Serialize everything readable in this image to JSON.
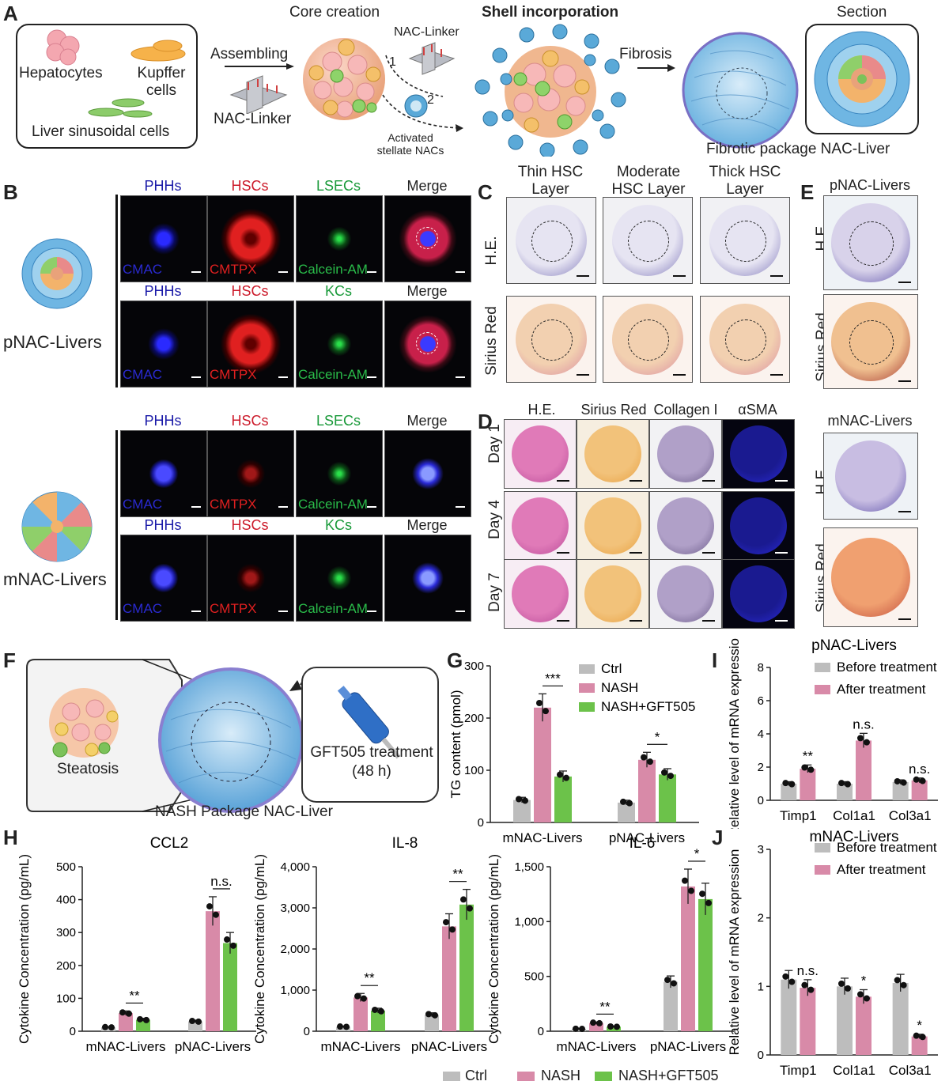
{
  "panel_labels": {
    "a": "A",
    "b": "B",
    "c": "C",
    "d": "D",
    "e": "E",
    "f": "F",
    "g": "G",
    "h": "H",
    "i": "I",
    "j": "J"
  },
  "panelA": {
    "cell_types": {
      "hepatocytes": "Hepatocytes",
      "kupffer": "Kupffer cells",
      "lsec": "Liver sinusoidal cells"
    },
    "assembling": "Assembling",
    "nac_linker": "NAC-Linker",
    "core_creation": "Core creation",
    "shell_incorporation": "Shell incorporation",
    "linker_top": "NAC-Linker",
    "step1": "1",
    "step2": "2",
    "activated": "Activated stellate NACs",
    "fibrosis": "Fibrosis",
    "section": "Section",
    "fibrotic_package": "Fibrotic package NAC-Liver"
  },
  "panelB": {
    "group1": "pNAC-Livers",
    "group2": "mNAC-Livers",
    "rows": [
      {
        "headers": [
          "PHHs",
          "HSCs",
          "LSECs",
          "Merge"
        ],
        "dyes": [
          "CMAC",
          "CMTPX",
          "Calcein-AM",
          ""
        ]
      },
      {
        "headers": [
          "PHHs",
          "HSCs",
          "KCs",
          "Merge"
        ],
        "dyes": [
          "CMAC",
          "CMTPX",
          "Calcein-AM",
          ""
        ]
      },
      {
        "headers": [
          "PHHs",
          "HSCs",
          "LSECs",
          "Merge"
        ],
        "dyes": [
          "CMAC",
          "CMTPX",
          "Calcein-AM",
          ""
        ]
      },
      {
        "headers": [
          "PHHs",
          "HSCs",
          "KCs",
          "Merge"
        ],
        "dyes": [
          "CMAC",
          "CMTPX",
          "Calcein-AM",
          ""
        ]
      }
    ],
    "header_colors": [
      "#1a1aa8",
      "#cc1a2a",
      "#1a9a3a",
      "#222222"
    ]
  },
  "panelC": {
    "cols": [
      "Thin HSC Layer",
      "Moderate HSC Layer",
      "Thick HSC Layer"
    ],
    "rows": [
      "H.E.",
      "Sirius Red"
    ]
  },
  "panelD": {
    "cols": [
      "H.E.",
      "Sirius Red",
      "Collagen I",
      "αSMA"
    ],
    "rows": [
      "Day 1",
      "Day 4",
      "Day 7"
    ]
  },
  "panelE": {
    "top": "pNAC-Livers",
    "bottom": "mNAC-Livers",
    "rows": [
      "H.E.",
      "Sirius Red"
    ]
  },
  "panelF": {
    "steatosis": "Steatosis",
    "treatment": "GFT505 treatment (48 h)",
    "caption": "NASH Package NAC-Liver"
  },
  "colors": {
    "ctrl": "#bdbdbd",
    "nash": "#d88aa8",
    "gft": "#6cc24a",
    "before": "#bdbdbd",
    "after": "#d88aa8"
  },
  "chart_data": [
    {
      "id": "G",
      "type": "bar",
      "ylabel": "TG content (pmol)",
      "categories": [
        "mNAC-Livers",
        "pNAC-Livers"
      ],
      "ylim": [
        0,
        300
      ],
      "yticks": [
        0,
        100,
        200,
        300
      ],
      "series": [
        {
          "name": "Ctrl",
          "values": [
            43,
            38
          ]
        },
        {
          "name": "NASH",
          "values": [
            220,
            120
          ]
        },
        {
          "name": "NASH+GFT505",
          "values": [
            88,
            92
          ]
        }
      ],
      "annotations": [
        "***",
        "*"
      ]
    },
    {
      "id": "I",
      "type": "bar",
      "title": "pNAC-Livers",
      "ylabel": "Relative level of mRNA expression",
      "categories": [
        "Timp1",
        "Col1a1",
        "Col3a1"
      ],
      "ylim": [
        0,
        8
      ],
      "yticks": [
        0,
        2,
        4,
        6,
        8
      ],
      "series": [
        {
          "name": "Before treatment",
          "values": [
            1.0,
            1.0,
            1.1
          ]
        },
        {
          "name": "After treatment",
          "values": [
            1.9,
            3.6,
            1.2
          ]
        }
      ],
      "annotations": [
        "**",
        "n.s.",
        "n.s."
      ]
    },
    {
      "id": "J",
      "type": "bar",
      "title": "mNAC-Livers",
      "ylabel": "Relative level of mRNA expression",
      "categories": [
        "Timp1",
        "Col1a1",
        "Col3a1"
      ],
      "ylim": [
        0,
        3
      ],
      "yticks": [
        0,
        1,
        2,
        3
      ],
      "series": [
        {
          "name": "Before treatment",
          "values": [
            1.1,
            1.0,
            1.05
          ]
        },
        {
          "name": "After treatment",
          "values": [
            0.98,
            0.85,
            0.27
          ]
        }
      ],
      "annotations": [
        "n.s.",
        "*",
        "*"
      ]
    },
    {
      "id": "H1",
      "type": "bar",
      "title": "CCL2",
      "ylabel": "Cytokine Concentration (pg/mL)",
      "categories": [
        "mNAC-Livers",
        "pNAC-Livers"
      ],
      "ylim": [
        0,
        500
      ],
      "yticks": [
        0,
        100,
        200,
        300,
        400,
        500
      ],
      "yticklabels": [
        "0",
        "100",
        "200",
        "300",
        "400",
        "500"
      ],
      "series": [
        {
          "name": "Ctrl",
          "values": [
            12,
            30
          ]
        },
        {
          "name": "NASH",
          "values": [
            55,
            365
          ]
        },
        {
          "name": "NASH+GFT505",
          "values": [
            35,
            268
          ]
        }
      ],
      "annotations": [
        "**",
        "n.s."
      ]
    },
    {
      "id": "H2",
      "type": "bar",
      "title": "IL-8",
      "ylabel": "Cytokine Concentration (pg/mL)",
      "categories": [
        "mNAC-Livers",
        "pNAC-Livers"
      ],
      "ylim": [
        0,
        4000
      ],
      "yticks": [
        0,
        1000,
        2000,
        3000,
        4000
      ],
      "yticklabels": [
        "0",
        "1,000",
        "2,000",
        "3,000",
        "4,000"
      ],
      "series": [
        {
          "name": "Ctrl",
          "values": [
            110,
            400
          ]
        },
        {
          "name": "NASH",
          "values": [
            820,
            2550
          ]
        },
        {
          "name": "NASH+GFT505",
          "values": [
            500,
            3080
          ]
        }
      ],
      "annotations": [
        "**",
        "**"
      ]
    },
    {
      "id": "H3",
      "type": "bar",
      "title": "IL-6",
      "ylabel": "Cytokine Concentration (pg/mL)",
      "categories": [
        "mNAC-Livers",
        "pNAC-Livers"
      ],
      "ylim": [
        0,
        1500
      ],
      "yticks": [
        0,
        500,
        1000,
        1500
      ],
      "yticklabels": [
        "0",
        "500",
        "1,000",
        "1,500"
      ],
      "series": [
        {
          "name": "Ctrl",
          "values": [
            22,
            450
          ]
        },
        {
          "name": "NASH",
          "values": [
            75,
            1320
          ]
        },
        {
          "name": "NASH+GFT505",
          "values": [
            42,
            1205
          ]
        }
      ],
      "annotations": [
        "**",
        "*"
      ]
    }
  ],
  "legends": {
    "g": [
      "Ctrl",
      "NASH",
      "NASH+GFT505"
    ],
    "h": [
      "Ctrl",
      "NASH",
      "NASH+GFT505"
    ],
    "ij": [
      "Before treatment",
      "After treatment"
    ]
  }
}
